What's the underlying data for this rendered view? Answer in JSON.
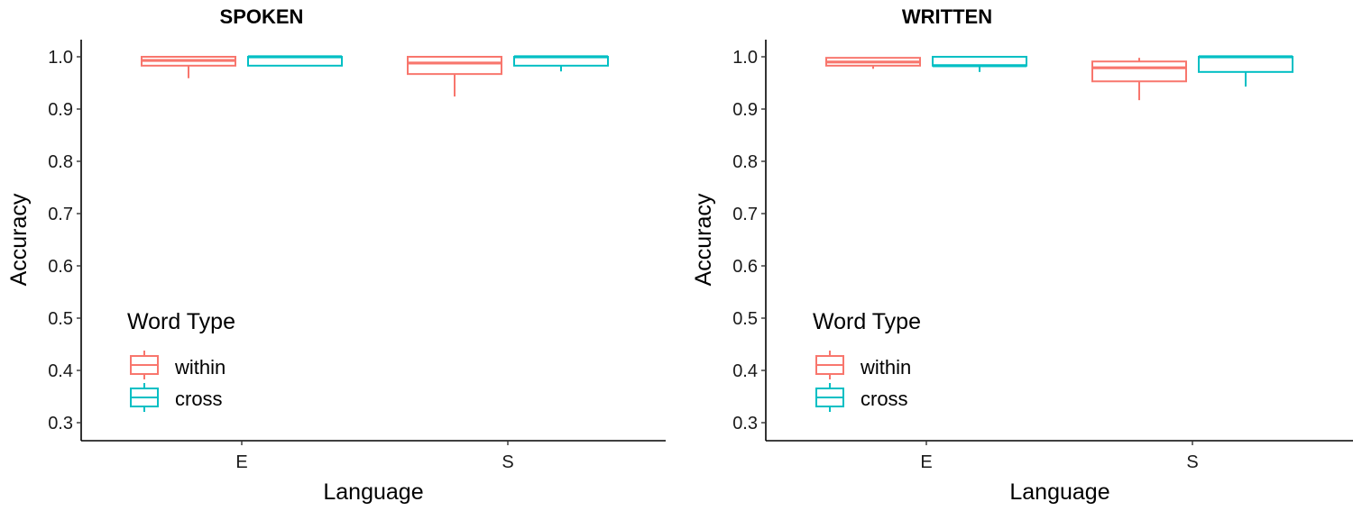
{
  "chart_data": [
    {
      "type": "boxplot",
      "title": "SPOKEN",
      "xlabel": "Language",
      "ylabel": "Accuracy",
      "ylim": [
        0.3,
        1.0
      ],
      "yticks": [
        "0.3",
        "0.4",
        "0.5",
        "0.6",
        "0.7",
        "0.8",
        "0.9",
        "1.0"
      ],
      "categories": [
        "E",
        "S"
      ],
      "legend": {
        "title": "Word Type",
        "position": "inside-bottom-left",
        "entries": [
          "within",
          "cross"
        ]
      },
      "grid": false,
      "series": [
        {
          "name": "within",
          "color": "#F8766D",
          "values": [
            {
              "category": "E",
              "min": 0.959,
              "q1": 0.983,
              "median": 0.993,
              "q3": 1.0,
              "max": 1.0
            },
            {
              "category": "S",
              "min": 0.924,
              "q1": 0.967,
              "median": 0.988,
              "q3": 1.0,
              "max": 1.0
            }
          ]
        },
        {
          "name": "cross",
          "color": "#00BFC4",
          "values": [
            {
              "category": "E",
              "min": 0.983,
              "q1": 0.983,
              "median": 1.0,
              "q3": 1.0,
              "max": 1.0
            },
            {
              "category": "S",
              "min": 0.972,
              "q1": 0.983,
              "median": 1.0,
              "q3": 1.0,
              "max": 1.0
            }
          ]
        }
      ]
    },
    {
      "type": "boxplot",
      "title": "WRITTEN",
      "xlabel": "Language",
      "ylabel": "Accuracy",
      "ylim": [
        0.3,
        1.0
      ],
      "yticks": [
        "0.3",
        "0.4",
        "0.5",
        "0.6",
        "0.7",
        "0.8",
        "0.9",
        "1.0"
      ],
      "categories": [
        "E",
        "S"
      ],
      "legend": {
        "title": "Word Type",
        "position": "inside-bottom-left",
        "entries": [
          "within",
          "cross"
        ]
      },
      "grid": false,
      "series": [
        {
          "name": "within",
          "color": "#F8766D",
          "values": [
            {
              "category": "E",
              "min": 0.977,
              "q1": 0.983,
              "median": 0.99,
              "q3": 0.998,
              "max": 0.998
            },
            {
              "category": "S",
              "min": 0.917,
              "q1": 0.953,
              "median": 0.979,
              "q3": 0.991,
              "max": 0.998
            }
          ]
        },
        {
          "name": "cross",
          "color": "#00BFC4",
          "values": [
            {
              "category": "E",
              "min": 0.971,
              "q1": 0.983,
              "median": 0.983,
              "q3": 1.0,
              "max": 1.0
            },
            {
              "category": "S",
              "min": 0.943,
              "q1": 0.971,
              "median": 1.0,
              "q3": 1.0,
              "max": 1.0
            }
          ]
        }
      ]
    }
  ],
  "panels": [
    {
      "title": "SPOKEN",
      "ylabel": "Accuracy",
      "xlabel": "Language",
      "legend_title": "Word Type",
      "legend_within": "within",
      "legend_cross": "cross",
      "xtick_e": "E",
      "xtick_s": "S"
    },
    {
      "title": "WRITTEN",
      "ylabel": "Accuracy",
      "xlabel": "Language",
      "legend_title": "Word Type",
      "legend_within": "within",
      "legend_cross": "cross",
      "xtick_e": "E",
      "xtick_s": "S"
    }
  ]
}
